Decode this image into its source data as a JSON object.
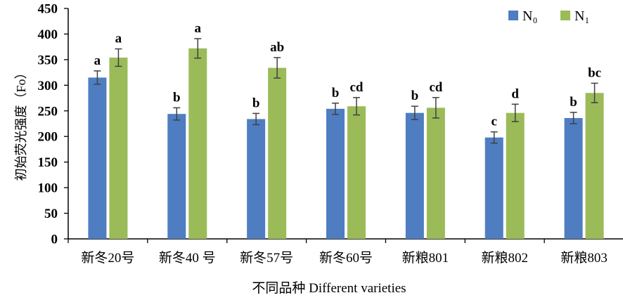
{
  "chart_data": {
    "type": "bar",
    "categories": [
      "新冬20号",
      "新冬40 号",
      "新冬57号",
      "新冬60号",
      "新粮801",
      "新粮802",
      "新粮803"
    ],
    "series": [
      {
        "name": "N₀",
        "color": "#4f7dc2",
        "values": [
          315,
          244,
          234,
          254,
          246,
          198,
          236
        ],
        "errors": [
          13,
          12,
          11,
          11,
          13,
          11,
          11
        ],
        "labels": [
          "a",
          "b",
          "b",
          "b",
          "b",
          "c",
          "b"
        ]
      },
      {
        "name": "N₁",
        "color": "#9bbb59",
        "values": [
          354,
          372,
          334,
          259,
          256,
          246,
          285
        ],
        "errors": [
          17,
          19,
          20,
          17,
          20,
          17,
          19
        ],
        "labels": [
          "a",
          "a",
          "ab",
          "cd",
          "cd",
          "d",
          "bc"
        ]
      }
    ],
    "xlabel": "不同品种  Different varieties",
    "ylabel": "初始荧光强度（Fo）",
    "ylim": [
      0,
      450
    ],
    "yticks": [
      0,
      50,
      100,
      150,
      200,
      250,
      300,
      350,
      400,
      450
    ],
    "grid": false,
    "legend": "top-right"
  }
}
